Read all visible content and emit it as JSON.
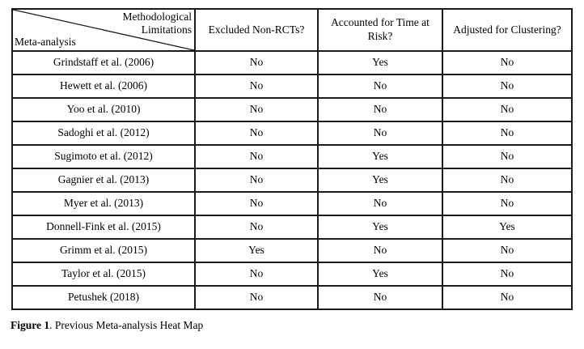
{
  "table": {
    "corner": {
      "top_label_line1": "Methodological",
      "top_label_line2": "Limitations",
      "bottom_label": "Meta-analysis"
    },
    "columns": [
      "Excluded Non-RCTs?",
      "Accounted for Time at Risk?",
      "Adjusted for Clustering?"
    ],
    "rows": [
      {
        "study": "Grindstaff et al. (2006)",
        "values": [
          "No",
          "Yes",
          "No"
        ]
      },
      {
        "study": "Hewett et al. (2006)",
        "values": [
          "No",
          "No",
          "No"
        ]
      },
      {
        "study": "Yoo et al. (2010)",
        "values": [
          "No",
          "No",
          "No"
        ]
      },
      {
        "study": "Sadoghi et al. (2012)",
        "values": [
          "No",
          "No",
          "No"
        ]
      },
      {
        "study": "Sugimoto et al. (2012)",
        "values": [
          "No",
          "Yes",
          "No"
        ]
      },
      {
        "study": "Gagnier et al. (2013)",
        "values": [
          "No",
          "Yes",
          "No"
        ]
      },
      {
        "study": "Myer et al. (2013)",
        "values": [
          "No",
          "No",
          "No"
        ]
      },
      {
        "study": "Donnell-Fink et al. (2015)",
        "values": [
          "No",
          "Yes",
          "Yes"
        ]
      },
      {
        "study": "Grimm et al. (2015)",
        "values": [
          "Yes",
          "No",
          "No"
        ]
      },
      {
        "study": "Taylor et al. (2015)",
        "values": [
          "No",
          "Yes",
          "No"
        ]
      },
      {
        "study": "Petushek (2018)",
        "values": [
          "No",
          "No",
          "No"
        ]
      }
    ]
  },
  "caption": {
    "label": "Figure 1",
    "text": ". Previous Meta-analysis Heat Map"
  },
  "colors": {
    "border": "#1a1a1a",
    "background": "#ffffff",
    "text": "#000000"
  }
}
